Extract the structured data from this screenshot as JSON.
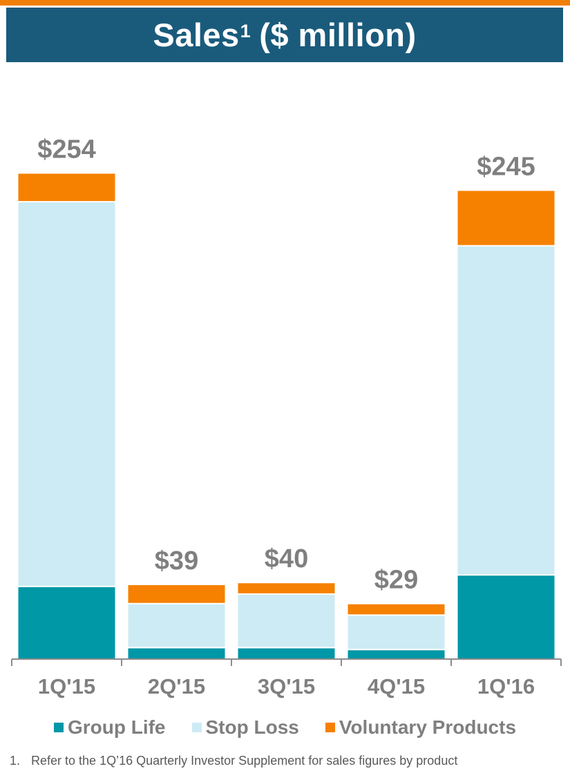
{
  "header": {
    "title_main": "Sales",
    "title_sup": "1",
    "title_rest": "($ million)"
  },
  "colors": {
    "header_bg": "#1a5b7c",
    "accent_stripe": "#f07f09",
    "group_life": "#0097a7",
    "stop_loss": "#cdebf4",
    "voluntary_products": "#f68000",
    "label_text": "#7f7f7f"
  },
  "chart_data": {
    "type": "bar",
    "stacked": true,
    "title": "Sales¹ ($ million)",
    "categories": [
      "1Q'15",
      "2Q'15",
      "3Q'15",
      "4Q'15",
      "1Q'16"
    ],
    "series": [
      {
        "name": "Group Life",
        "values": [
          38,
          6,
          6,
          5,
          44
        ]
      },
      {
        "name": "Stop Loss",
        "values": [
          201,
          23,
          28,
          18,
          172
        ]
      },
      {
        "name": "Voluntary Products",
        "values": [
          15,
          10,
          6,
          6,
          29
        ]
      }
    ],
    "totals": [
      254,
      39,
      40,
      29,
      245
    ],
    "total_labels": [
      "$254",
      "$39",
      "$40",
      "$29",
      "$245"
    ],
    "ylim": [
      0,
      300
    ],
    "grid": false,
    "legend": "bottom",
    "xlabel": "",
    "ylabel": ""
  },
  "legend": {
    "items": [
      "Group Life",
      "Stop Loss",
      "Voluntary Products"
    ]
  },
  "footnote": {
    "number": "1.",
    "text": "Refer to the 1Q’16 Quarterly Investor Supplement for sales figures by product"
  }
}
